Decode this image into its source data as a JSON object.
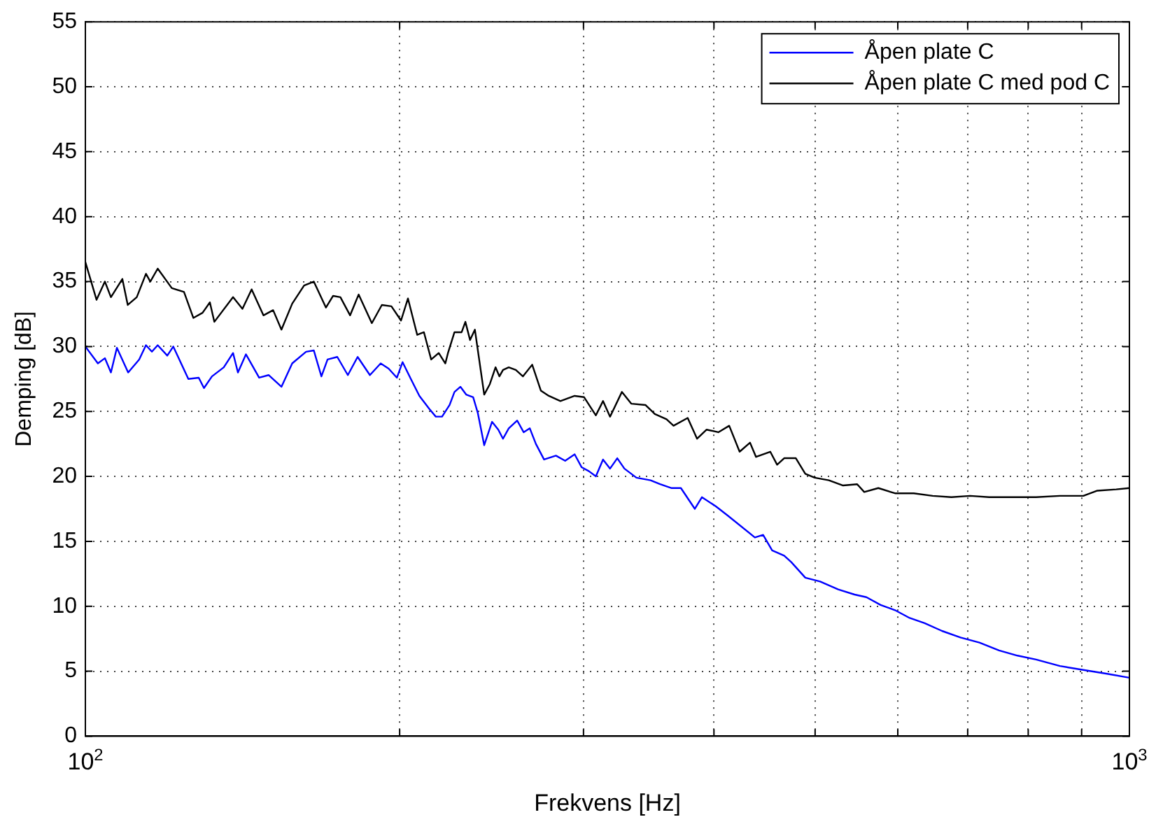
{
  "chart_data": {
    "type": "line",
    "xlabel": "Frekvens [Hz]",
    "ylabel": "Demping [dB]",
    "log": "x",
    "xlim": [
      100,
      1000
    ],
    "ylim": [
      0,
      55
    ],
    "xticks": [
      {
        "value": 100,
        "label": "10$^{2}$"
      },
      {
        "value": 200,
        "label": null
      },
      {
        "value": 300,
        "label": null
      },
      {
        "value": 400,
        "label": null
      },
      {
        "value": 500,
        "label": null
      },
      {
        "value": 600,
        "label": null
      },
      {
        "value": 700,
        "label": null
      },
      {
        "value": 800,
        "label": null
      },
      {
        "value": 900,
        "label": null
      },
      {
        "value": 1000,
        "label": "10$^{3}$"
      }
    ],
    "yticks": [
      0,
      5,
      10,
      15,
      20,
      25,
      30,
      35,
      40,
      45,
      50,
      55
    ],
    "grid": true,
    "legend": "top right",
    "marker": "none",
    "series": [
      {
        "name": "Åpen plate C",
        "color": "#0000ff",
        "x": [
          100,
          102.8,
          104.4,
          105.8,
          107.2,
          109.9,
          112.6,
          114.3,
          115.8,
          117.3,
          119.8,
          121.4,
          125.5,
          128.4,
          129.9,
          132.2,
          135.7,
          138.5,
          140,
          142.5,
          146.7,
          149.8,
          154.1,
          157.8,
          162.7,
          165.5,
          168.3,
          170.6,
          174.3,
          178.4,
          182.3,
          187.3,
          191.8,
          195.2,
          198.8,
          201.3,
          205,
          208.9,
          213.5,
          216.6,
          219.6,
          223.3,
          225.7,
          228.7,
          231.6,
          235.2,
          237.6,
          241,
          245.2,
          248.6,
          251.2,
          254.4,
          259.2,
          262.9,
          266.5,
          270.1,
          275,
          282.3,
          288.1,
          294.2,
          298.8,
          303.6,
          308.3,
          313.2,
          318.1,
          323.2,
          328.3,
          337.1,
          347.8,
          355.2,
          364.4,
          371.9,
          383.5,
          389.5,
          401.6,
          412.1,
          437.8,
          445.8,
          454.8,
          467,
          474.4,
          489.3,
          505.6,
          526.1,
          545.5,
          559.9,
          577.7,
          596.3,
          615.9,
          636.6,
          661.5,
          689,
          718.3,
          750.2,
          781.3,
          814,
          857.9,
          903.4,
          952,
          1000
        ],
        "values": [
          30.0,
          28.7,
          29.1,
          28.0,
          29.9,
          28.0,
          29.0,
          30.1,
          29.6,
          30.1,
          29.3,
          30.0,
          27.5,
          27.6,
          26.8,
          27.7,
          28.4,
          29.5,
          28.0,
          29.4,
          27.6,
          27.8,
          26.9,
          28.7,
          29.6,
          29.7,
          27.7,
          29.0,
          29.2,
          27.8,
          29.2,
          27.8,
          28.7,
          28.3,
          27.6,
          28.8,
          27.5,
          26.2,
          25.2,
          24.6,
          24.6,
          25.5,
          26.5,
          26.9,
          26.3,
          26.1,
          24.9,
          22.4,
          24.2,
          23.6,
          22.9,
          23.7,
          24.3,
          23.4,
          23.7,
          22.5,
          21.3,
          21.6,
          21.2,
          21.7,
          20.7,
          20.4,
          20.0,
          21.3,
          20.6,
          21.4,
          20.6,
          19.9,
          19.7,
          19.4,
          19.1,
          19.1,
          17.5,
          18.4,
          17.7,
          17.0,
          15.3,
          15.5,
          14.3,
          13.9,
          13.4,
          12.2,
          11.9,
          11.3,
          10.9,
          10.7,
          10.1,
          9.7,
          9.1,
          8.7,
          8.1,
          7.6,
          7.2,
          6.6,
          6.2,
          5.9,
          5.4,
          5.1,
          4.8,
          4.5
        ]
      },
      {
        "name": "Åpen plate C med pod C",
        "color": "#000000",
        "x": [
          100,
          102.5,
          104.4,
          105.8,
          108.5,
          109.8,
          112,
          114.3,
          115.4,
          117.3,
          121,
          124.3,
          126.9,
          129.5,
          131.6,
          132.9,
          138.5,
          141.4,
          144.3,
          148.1,
          151.3,
          154.1,
          157.8,
          162,
          165.5,
          170,
          172.7,
          175.5,
          179.3,
          182.7,
          188.1,
          192.3,
          196.4,
          200.6,
          203.7,
          207.9,
          211,
          214.4,
          218,
          221.2,
          222.5,
          225.7,
          229.3,
          231.2,
          233.6,
          236.1,
          241,
          244,
          247.1,
          249.2,
          251.2,
          254.4,
          258.4,
          262.5,
          267.9,
          273.1,
          277.9,
          285.1,
          294.2,
          300.4,
          308.3,
          313.2,
          318.1,
          326.5,
          333.3,
          343.9,
          351.1,
          360.3,
          365.9,
          377.5,
          385.4,
          393.6,
          403.9,
          413.7,
          423.3,
          433.1,
          438.9,
          452.9,
          459.8,
          467,
          479.2,
          489.3,
          499.5,
          515.4,
          531.8,
          548.6,
          557.2,
          574.8,
          596.3,
          621.5,
          647.9,
          675.3,
          703.9,
          733.9,
          772.8,
          814,
          857.9,
          903.4,
          931.8,
          971.4,
          1000
        ],
        "values": [
          36.5,
          33.6,
          35.0,
          33.8,
          35.2,
          33.2,
          33.8,
          35.6,
          35.0,
          36.0,
          34.5,
          34.2,
          32.2,
          32.6,
          33.4,
          31.9,
          33.8,
          32.9,
          34.4,
          32.4,
          32.8,
          31.3,
          33.3,
          34.7,
          35.0,
          33.0,
          33.9,
          33.8,
          32.4,
          34.0,
          31.8,
          33.2,
          33.1,
          32.0,
          33.7,
          30.9,
          31.1,
          29.0,
          29.5,
          28.7,
          29.5,
          31.1,
          31.1,
          31.9,
          30.5,
          31.3,
          26.3,
          27.1,
          28.4,
          27.7,
          28.2,
          28.4,
          28.2,
          27.7,
          28.6,
          26.6,
          26.2,
          25.8,
          26.2,
          26.1,
          24.7,
          25.8,
          24.6,
          26.5,
          25.6,
          25.5,
          24.8,
          24.4,
          23.9,
          24.5,
          22.9,
          23.6,
          23.4,
          23.9,
          21.9,
          22.6,
          21.5,
          21.9,
          20.9,
          21.4,
          21.4,
          20.2,
          19.9,
          19.7,
          19.3,
          19.4,
          18.8,
          19.1,
          18.7,
          18.7,
          18.5,
          18.4,
          18.5,
          18.4,
          18.4,
          18.4,
          18.5,
          18.5,
          18.9,
          19.0,
          19.1
        ]
      }
    ]
  }
}
